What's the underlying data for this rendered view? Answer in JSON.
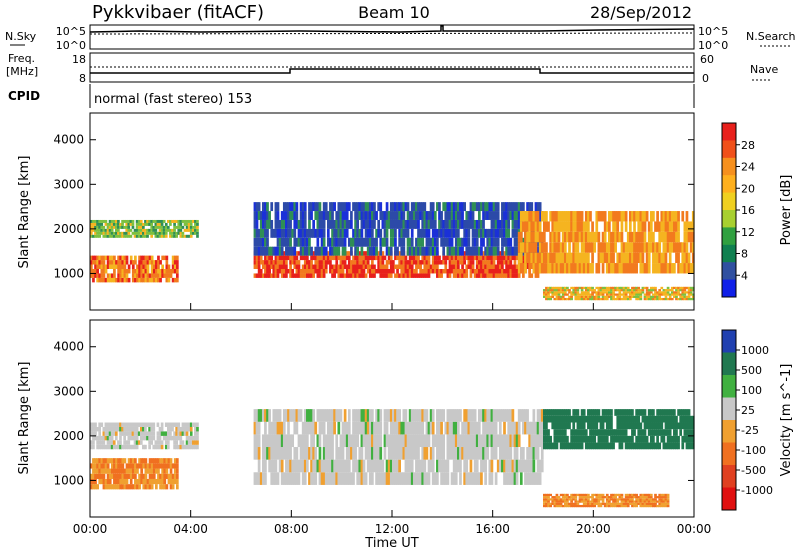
{
  "header": {
    "station": "Pykkvibaer (fitACF)",
    "beam": "Beam 10",
    "date": "28/Sep/2012"
  },
  "noise_panel": {
    "left_label": "N.Sky",
    "left_ticks": [
      "10^5",
      "10^0"
    ],
    "right_ticks": [
      "10^5",
      "10^0"
    ],
    "right_label": "N.Search"
  },
  "freq_panel": {
    "left_label_1": "Freq.",
    "left_label_2": "[MHz]",
    "left_ticks": [
      "18",
      "8"
    ],
    "right_ticks": [
      "60",
      "0"
    ],
    "right_label": "Nave"
  },
  "cpid_panel": {
    "left_label": "CPID",
    "mode": "normal (fast stereo) 153"
  },
  "power_panel": {
    "ylabel": "Slant Range [km]",
    "yticks": [
      "4000",
      "3000",
      "2000",
      "1000"
    ],
    "colorbar_label": "Power [dB]",
    "colorbar_ticks": [
      "28",
      "24",
      "20",
      "16",
      "12",
      "8",
      "4"
    ],
    "colorbar_colors": [
      "#e8201c",
      "#f0501a",
      "#f6901e",
      "#ffb01e",
      "#f0d020",
      "#a8d030",
      "#30a040",
      "#108050",
      "#3050a0",
      "#1020e8"
    ]
  },
  "velocity_panel": {
    "ylabel": "Slant Range [km]",
    "yticks": [
      "4000",
      "3000",
      "2000",
      "1000"
    ],
    "colorbar_label": "Velocity [m s^-1]",
    "colorbar_ticks": [
      "1000",
      "500",
      "100",
      "25",
      "-25",
      "-100",
      "-500",
      "-1000"
    ],
    "colorbar_colors": [
      "#2040b0",
      "#207850",
      "#40b040",
      "#c8c8c8",
      "#f0a030",
      "#f07020",
      "#e04020",
      "#e01010"
    ]
  },
  "x_axis": {
    "label": "Time UT",
    "ticks": [
      "00:00",
      "04:00",
      "08:00",
      "12:00",
      "16:00",
      "20:00",
      "00:00"
    ]
  },
  "chart_data": [
    {
      "type": "line",
      "title": "Pykkvibaer (fitACF) Beam 10 28/Sep/2012",
      "panel": "noise",
      "series": [
        {
          "name": "N.Sky",
          "x": [
            0,
            24
          ],
          "y": [
            100000,
            100000
          ]
        },
        {
          "name": "N.Search",
          "x": [
            0,
            24
          ],
          "y": [
            100000,
            100000
          ]
        }
      ]
    },
    {
      "type": "line",
      "panel": "frequency",
      "series": [
        {
          "name": "Freq.",
          "x": [
            0,
            8.0,
            8.0,
            18.0,
            18.0,
            24
          ],
          "y": [
            10,
            10,
            12,
            12,
            10,
            10
          ]
        },
        {
          "name": "Nave",
          "x": [
            0,
            24
          ],
          "y": [
            30,
            30
          ]
        }
      ]
    },
    {
      "type": "heatmap",
      "panel": "power",
      "xlabel": "Time UT",
      "ylabel": "Slant Range [km]",
      "xlim": [
        0,
        24
      ],
      "ylim": [
        180,
        4600
      ],
      "colorbar_label": "Power [dB]",
      "regions": [
        {
          "t0": 0.0,
          "t1": 3.5,
          "r0": 800,
          "r1": 1400,
          "power": 24
        },
        {
          "t0": 0.0,
          "t1": 4.3,
          "r0": 1800,
          "r1": 2200,
          "power": 16
        },
        {
          "t0": 6.5,
          "t1": 18.0,
          "r0": 900,
          "r1": 1500,
          "power": 26
        },
        {
          "t0": 6.5,
          "t1": 18.0,
          "r0": 1400,
          "r1": 2600,
          "power": 8
        },
        {
          "t0": 17.0,
          "t1": 24.0,
          "r0": 1000,
          "r1": 2400,
          "power": 22
        },
        {
          "t0": 18.0,
          "t1": 24.0,
          "r0": 400,
          "r1": 700,
          "power": 20
        }
      ]
    },
    {
      "type": "heatmap",
      "panel": "velocity",
      "xlabel": "Time UT",
      "ylabel": "Slant Range [km]",
      "xlim": [
        0,
        24
      ],
      "ylim": [
        180,
        4600
      ],
      "colorbar_label": "Velocity [m s^-1]",
      "regions": [
        {
          "t0": 0.0,
          "t1": 3.5,
          "r0": 800,
          "r1": 1500,
          "velocity": -100
        },
        {
          "t0": 0.0,
          "t1": 4.3,
          "r0": 1700,
          "r1": 2300,
          "velocity": 0
        },
        {
          "t0": 6.5,
          "t1": 18.0,
          "r0": 900,
          "r1": 2600,
          "velocity": 0
        },
        {
          "t0": 18.0,
          "t1": 24.0,
          "r0": 1700,
          "r1": 2600,
          "velocity": 300
        },
        {
          "t0": 18.0,
          "t1": 23.0,
          "r0": 400,
          "r1": 700,
          "velocity": -100
        }
      ]
    }
  ]
}
